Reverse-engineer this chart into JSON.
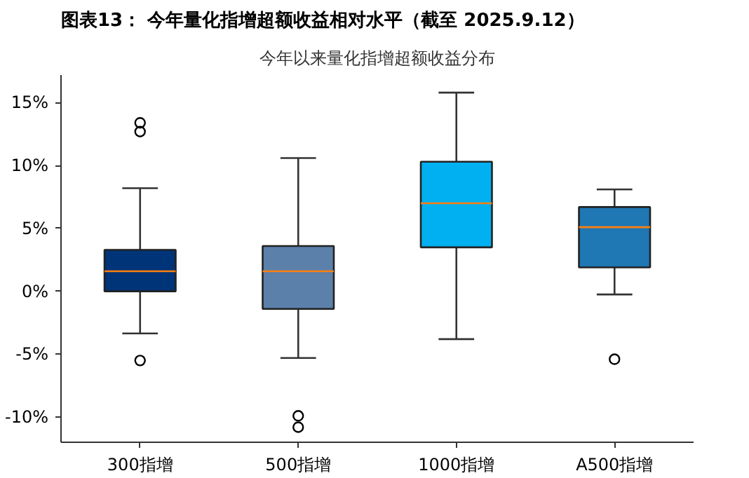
{
  "chart_data": {
    "type": "box",
    "title": "图表13：  今年量化指增超额收益相对水平（截至 2025.9.12）",
    "subtitle": "今年以来量化指增超额收益分布",
    "categories": [
      "300指增",
      "500指增",
      "1000指增",
      "A500指增"
    ],
    "colors": [
      "#003478",
      "#5b80aa",
      "#00b0f0",
      "#1f77b4"
    ],
    "boxes": [
      {
        "low": -3.35,
        "q1": 0,
        "median": 1.6,
        "q3": 3.3,
        "high": 8.2,
        "outliers": [
          13.4,
          12.7,
          -5.5
        ]
      },
      {
        "low": -5.3,
        "q1": -1.4,
        "median": 1.6,
        "q3": 3.6,
        "high": 10.6,
        "outliers": [
          -9.9,
          -10.8
        ]
      },
      {
        "low": -3.8,
        "q1": 3.5,
        "median": 7.0,
        "q3": 10.3,
        "high": 15.8
      },
      {
        "low": -0.25,
        "q1": 1.9,
        "median": 5.1,
        "q3": 6.7,
        "high": 8.1,
        "outliers": [
          -5.4
        ]
      }
    ],
    "ylim": [
      -12,
      17.2
    ],
    "yticks": [
      {
        "value": -10,
        "label": "-10%"
      },
      {
        "value": -5,
        "label": "-5%"
      },
      {
        "value": 0,
        "label": "0%"
      },
      {
        "value": 5,
        "label": "5%"
      },
      {
        "value": 10,
        "label": "10%"
      },
      {
        "value": 15,
        "label": "15%"
      }
    ],
    "grid": false
  }
}
